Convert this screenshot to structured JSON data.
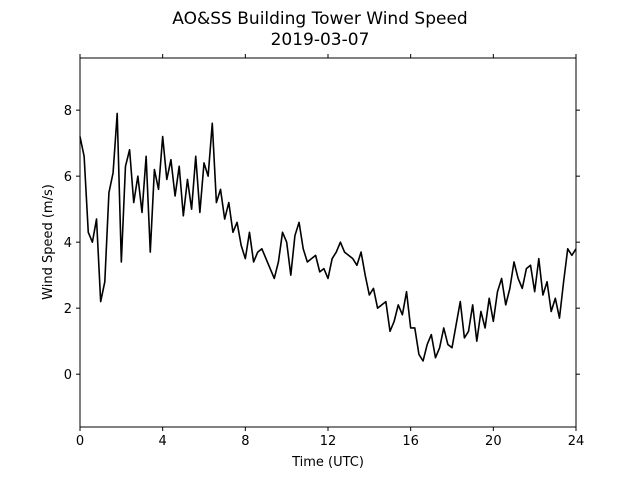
{
  "chart_data": {
    "type": "line",
    "title": "AO&SS Building Tower Wind Speed",
    "subtitle": "2019-03-07",
    "x_label": "Time (UTC)",
    "y_label": "Wind Speed (m/s)",
    "xlim": [
      0,
      24
    ],
    "xticks": [
      0,
      4,
      8,
      12,
      16,
      20,
      24
    ],
    "ylim": [
      -1.6,
      9.58
    ],
    "yticks": [
      0,
      2,
      4,
      6,
      8
    ],
    "x": [
      0.0,
      0.2,
      0.4,
      0.6,
      0.8,
      1.0,
      1.2,
      1.4,
      1.6,
      1.8,
      2.0,
      2.2,
      2.4,
      2.6,
      2.8,
      3.0,
      3.2,
      3.4,
      3.6,
      3.8,
      4.0,
      4.2,
      4.4,
      4.6,
      4.8,
      5.0,
      5.2,
      5.4,
      5.6,
      5.8,
      6.0,
      6.2,
      6.4,
      6.6,
      6.8,
      7.0,
      7.2,
      7.4,
      7.6,
      7.8,
      8.0,
      8.2,
      8.4,
      8.6,
      8.8,
      9.0,
      9.2,
      9.4,
      9.6,
      9.8,
      10.0,
      10.2,
      10.4,
      10.6,
      10.8,
      11.0,
      11.2,
      11.4,
      11.6,
      11.8,
      12.0,
      12.2,
      12.4,
      12.6,
      12.8,
      13.0,
      13.2,
      13.4,
      13.6,
      13.8,
      14.0,
      14.2,
      14.4,
      14.6,
      14.8,
      15.0,
      15.2,
      15.4,
      15.6,
      15.8,
      16.0,
      16.2,
      16.4,
      16.6,
      16.8,
      17.0,
      17.2,
      17.4,
      17.6,
      17.8,
      18.0,
      18.2,
      18.4,
      18.6,
      18.8,
      19.0,
      19.2,
      19.4,
      19.6,
      19.8,
      20.0,
      20.2,
      20.4,
      20.6,
      20.8,
      21.0,
      21.2,
      21.4,
      21.6,
      21.8,
      22.0,
      22.2,
      22.4,
      22.6,
      22.8,
      23.0,
      23.2,
      23.4,
      23.6,
      23.8,
      24.0
    ],
    "series": [
      {
        "color": "#000000",
        "values": [
          7.2,
          6.6,
          4.3,
          4.0,
          4.7,
          2.2,
          2.8,
          5.5,
          6.1,
          7.9,
          3.4,
          6.3,
          6.8,
          5.2,
          6.0,
          4.9,
          6.6,
          3.7,
          6.2,
          5.6,
          7.2,
          5.9,
          6.5,
          5.4,
          6.3,
          4.8,
          5.9,
          5.0,
          6.6,
          4.9,
          6.4,
          6.0,
          7.6,
          5.2,
          5.6,
          4.7,
          5.2,
          4.3,
          4.6,
          3.9,
          3.5,
          4.3,
          3.4,
          3.7,
          3.8,
          3.5,
          3.2,
          2.9,
          3.4,
          4.3,
          4.0,
          3.0,
          4.2,
          4.6,
          3.8,
          3.4,
          3.5,
          3.6,
          3.1,
          3.2,
          2.9,
          3.5,
          3.7,
          4.0,
          3.7,
          3.6,
          3.5,
          3.3,
          3.7,
          3.0,
          2.4,
          2.6,
          2.0,
          2.1,
          2.2,
          1.3,
          1.6,
          2.1,
          1.8,
          2.5,
          1.4,
          1.4,
          0.6,
          0.4,
          0.9,
          1.2,
          0.5,
          0.8,
          1.4,
          0.9,
          0.8,
          1.5,
          2.2,
          1.1,
          1.3,
          2.1,
          1.0,
          1.9,
          1.4,
          2.3,
          1.6,
          2.5,
          2.9,
          2.1,
          2.6,
          3.4,
          2.9,
          2.6,
          3.2,
          3.3,
          2.5,
          3.5,
          2.4,
          2.8,
          1.9,
          2.3,
          1.7,
          2.8,
          3.8,
          3.6,
          3.8
        ]
      }
    ]
  }
}
